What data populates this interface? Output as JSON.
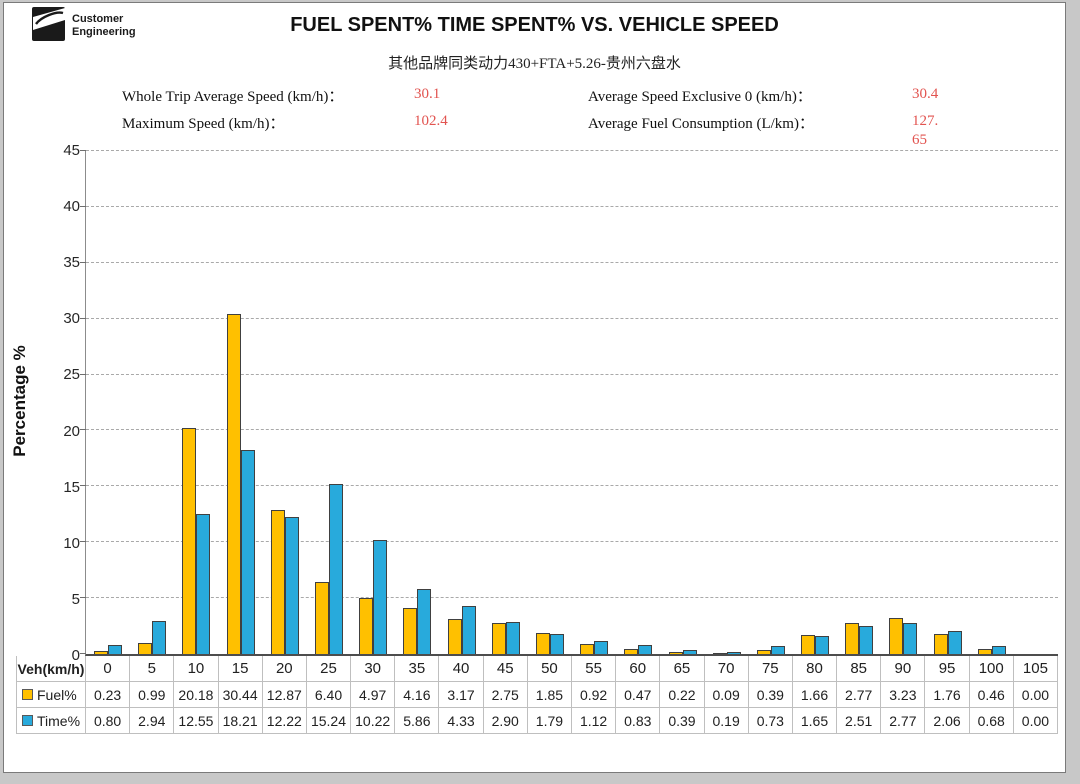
{
  "header": {
    "logo": {
      "line1": "Customer",
      "line2": "Engineering"
    },
    "title": "FUEL SPENT% TIME SPENT% VS. VEHICLE SPEED",
    "subtitle": "其他品牌同类动力430+FTA+5.26-贵州六盘水"
  },
  "stats": [
    {
      "label": "Whole Trip Average Speed (km/h)：",
      "lines": [
        "30.1"
      ]
    },
    {
      "label": "Average Speed Exclusive 0 (km/h)：",
      "lines": [
        "30.4"
      ]
    },
    {
      "label": "Maximum Speed (km/h)：",
      "lines": [
        "102.4"
      ]
    },
    {
      "label": "Average Fuel Consumption (L/km)：",
      "lines": [
        "127.",
        "65"
      ]
    }
  ],
  "y_axis": {
    "title": "Percentage %",
    "labels": [
      "45",
      "40",
      "35",
      "30",
      "25",
      "20",
      "15",
      "10",
      "5",
      "0"
    ]
  },
  "table": {
    "corner_label": "Veh(km/h)",
    "row_labels": [
      "Fuel%",
      "Time%"
    ]
  },
  "colors": {
    "fuel": "#FFC000",
    "time": "#28AADC",
    "stat_value": "#E25450",
    "gridline": "#A9A9A9",
    "axis": "#4D4D4D",
    "table_border": "#BFBFBF"
  },
  "chart_data": {
    "type": "bar",
    "title": "FUEL SPENT% TIME SPENT% VS. VEHICLE SPEED",
    "subtitle": "其他品牌同类动力430+FTA+5.26-贵州六盘水",
    "xlabel": "Veh(km/h)",
    "ylabel": "Percentage %",
    "ylim": [
      0,
      45
    ],
    "ytick_step": 5,
    "grid": "horizontal-dashed",
    "legend_position": "data-table-row-headers",
    "categories": [
      0,
      5,
      10,
      15,
      20,
      25,
      30,
      35,
      40,
      45,
      50,
      55,
      60,
      65,
      70,
      75,
      80,
      85,
      90,
      95,
      100,
      105
    ],
    "series": [
      {
        "name": "Fuel%",
        "color": "#FFC000",
        "values": [
          0.23,
          0.99,
          20.18,
          30.44,
          12.87,
          6.4,
          4.97,
          4.16,
          3.17,
          2.75,
          1.85,
          0.92,
          0.47,
          0.22,
          0.09,
          0.39,
          1.66,
          2.77,
          3.23,
          1.76,
          0.46,
          0.0
        ]
      },
      {
        "name": "Time%",
        "color": "#28AADC",
        "values": [
          0.8,
          2.94,
          12.55,
          18.21,
          12.22,
          15.24,
          10.22,
          5.86,
          4.33,
          2.9,
          1.79,
          1.12,
          0.83,
          0.39,
          0.19,
          0.73,
          1.65,
          2.51,
          2.77,
          2.06,
          0.68,
          0.0
        ]
      }
    ]
  }
}
